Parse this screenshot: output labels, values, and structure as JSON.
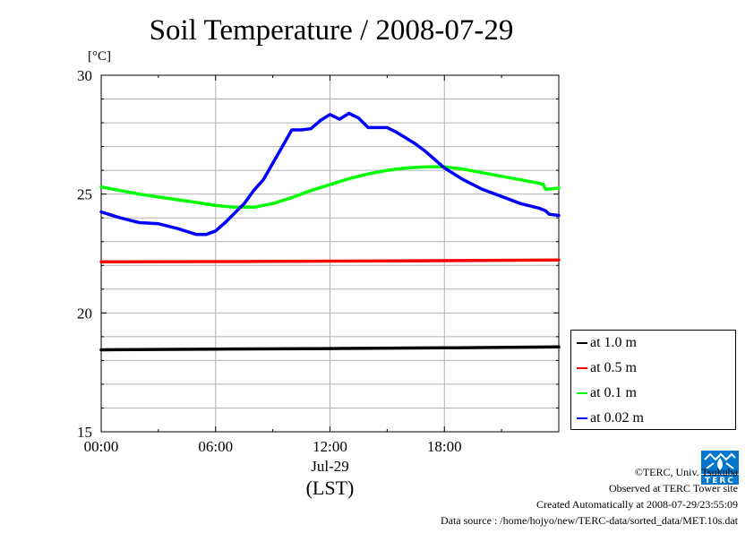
{
  "title": "Soil Temperature / 2008-07-29",
  "unit_label": "[°C]",
  "chart_data": {
    "type": "line",
    "title": "Soil Temperature / 2008-07-29",
    "xlabel": "(LST)",
    "date_label": "Jul-29",
    "ylabel": "[°C]",
    "xlim": [
      0,
      24
    ],
    "ylim": [
      15,
      30
    ],
    "x_ticks": [
      0,
      6,
      12,
      18
    ],
    "x_tick_labels": [
      "00:00",
      "06:00",
      "12:00",
      "18:00"
    ],
    "y_ticks": [
      15,
      20,
      25,
      30
    ],
    "y_tick_labels": [
      "15",
      "20",
      "25",
      "30"
    ],
    "grid": true,
    "legend_position": "right",
    "series": [
      {
        "name": "at 1.0 m",
        "color": "#000000",
        "x": [
          0,
          6,
          12,
          18,
          24
        ],
        "y": [
          18.45,
          18.48,
          18.5,
          18.53,
          18.57
        ]
      },
      {
        "name": "at 0.5 m",
        "color": "#ff0000",
        "x": [
          0,
          6,
          12,
          18,
          24
        ],
        "y": [
          22.15,
          22.16,
          22.18,
          22.2,
          22.23
        ]
      },
      {
        "name": "at 0.1 m",
        "color": "#00ff00",
        "x": [
          0,
          1,
          2,
          3,
          4,
          5,
          6,
          7,
          8,
          9,
          10,
          11,
          12,
          13,
          14,
          15,
          16,
          17,
          18,
          19,
          20,
          21,
          22,
          23,
          23.2,
          23.3,
          24
        ],
        "y": [
          25.3,
          25.15,
          25.0,
          24.88,
          24.76,
          24.65,
          24.52,
          24.45,
          24.45,
          24.6,
          24.85,
          25.15,
          25.4,
          25.65,
          25.85,
          26.0,
          26.1,
          26.15,
          26.15,
          26.05,
          25.9,
          25.75,
          25.6,
          25.45,
          25.4,
          25.2,
          25.25
        ]
      },
      {
        "name": "at 0.02 m",
        "color": "#0000ff",
        "x": [
          0,
          1,
          2,
          3,
          4,
          5,
          5.5,
          6,
          6.5,
          7,
          7.5,
          8,
          8.5,
          9,
          9.5,
          10,
          10.5,
          11,
          11.5,
          12,
          12.5,
          13,
          13.5,
          14,
          14.5,
          15,
          15.5,
          16,
          16.5,
          17,
          18,
          19,
          20,
          21,
          22,
          23,
          23.3,
          23.5,
          24
        ],
        "y": [
          24.25,
          24.0,
          23.8,
          23.75,
          23.55,
          23.3,
          23.3,
          23.45,
          23.8,
          24.2,
          24.6,
          25.15,
          25.6,
          26.3,
          27.0,
          27.7,
          27.7,
          27.75,
          28.1,
          28.35,
          28.15,
          28.4,
          28.2,
          27.8,
          27.8,
          27.8,
          27.6,
          27.35,
          27.1,
          26.8,
          26.1,
          25.6,
          25.2,
          24.9,
          24.6,
          24.4,
          24.3,
          24.15,
          24.1
        ]
      }
    ]
  },
  "credits": {
    "line1": "©TERC, Univ. Tsukuba",
    "line2": "Observed at TERC Tower site",
    "line3": "Created Automatically at 2008-07-29/23:55:09",
    "line4": "Data source : /home/hojyo/new/TERC-data/sorted_data/MET.10s.dat"
  },
  "logo_text": "TERC",
  "logo_color": "#0077cc"
}
